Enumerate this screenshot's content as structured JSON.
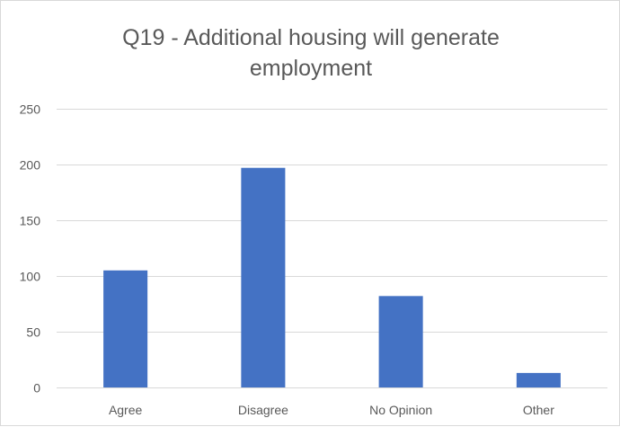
{
  "chart_data": {
    "type": "bar",
    "title_lines": [
      "Q19 - Additional housing will generate",
      "employment"
    ],
    "categories": [
      "Agree",
      "Disagree",
      "No Opinion",
      "Other"
    ],
    "values": [
      105,
      197,
      82,
      13
    ],
    "xlabel": "",
    "ylabel": "",
    "ylim": [
      0,
      250
    ],
    "yticks": [
      0,
      50,
      100,
      150,
      200,
      250
    ],
    "grid": true,
    "legend": "none",
    "bar_color": "#4472c4"
  }
}
